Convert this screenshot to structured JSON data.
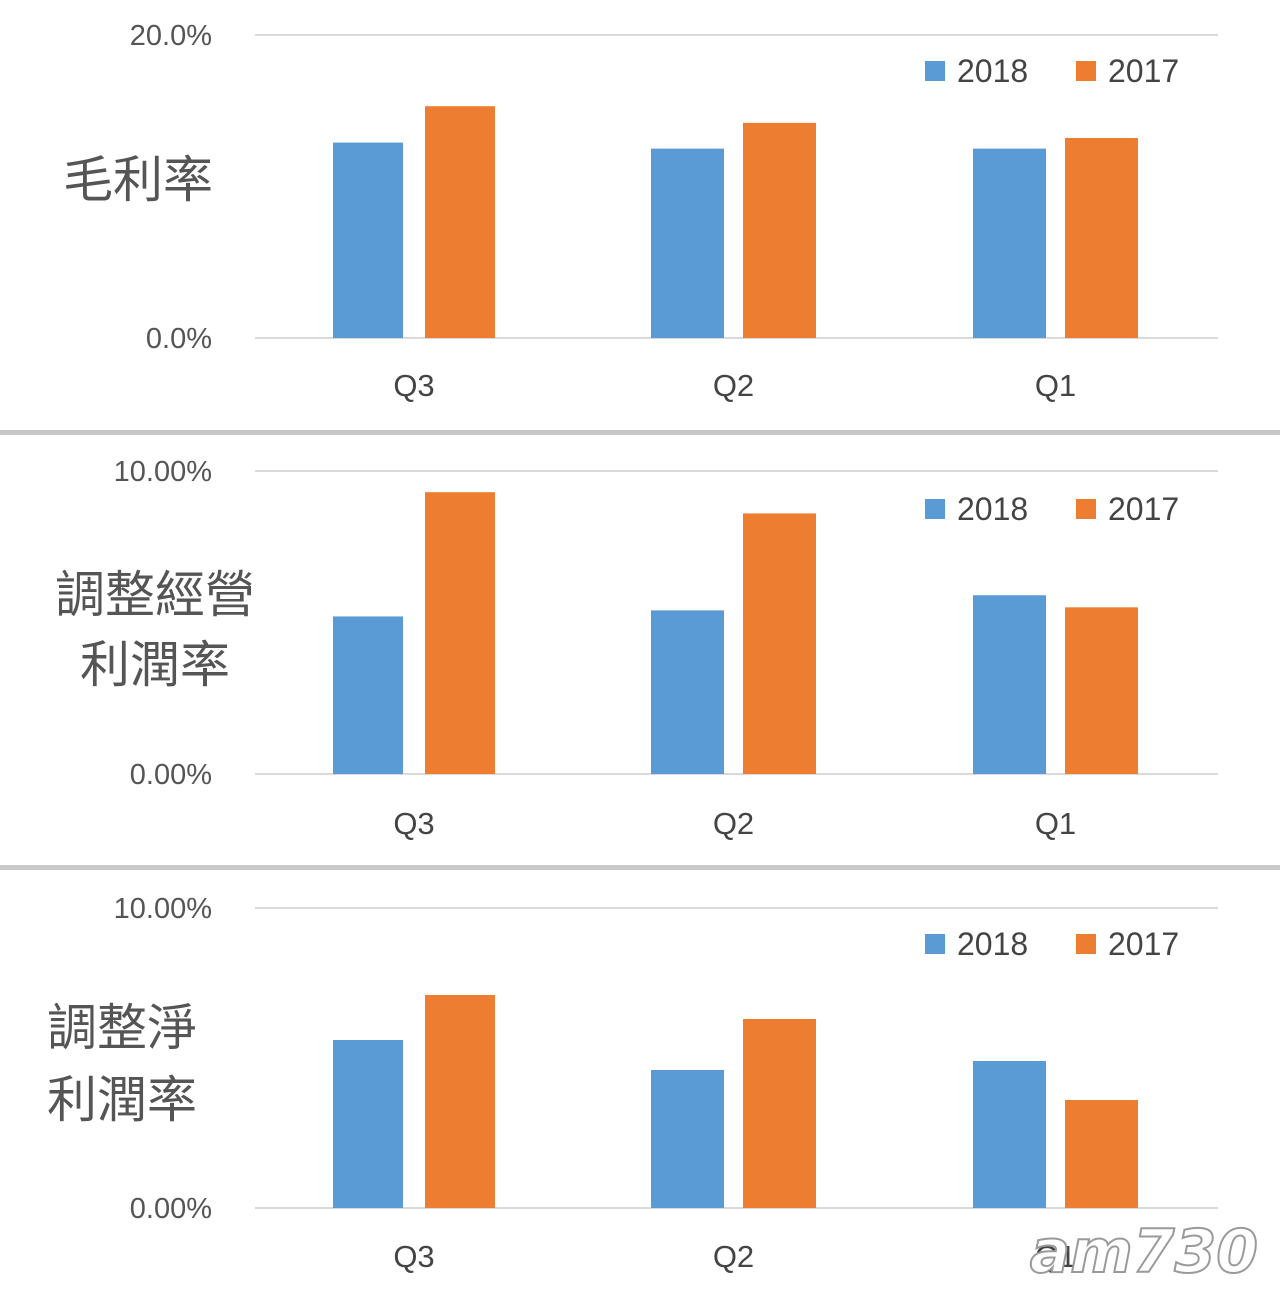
{
  "colors": {
    "series_2018": "#5b9bd5",
    "series_2017": "#ed7d31",
    "grid": "#d9d9d9",
    "divider": "#c8c8c8"
  },
  "watermark": "am730",
  "chart_data": [
    {
      "type": "bar",
      "label_lines": [
        "毛利率"
      ],
      "categories": [
        "Q3",
        "Q2",
        "Q1"
      ],
      "series": [
        {
          "name": "2018",
          "values": [
            12.9,
            12.5,
            12.5
          ]
        },
        {
          "name": "2017",
          "values": [
            15.3,
            14.2,
            13.2
          ]
        }
      ],
      "ylim": [
        0,
        20
      ],
      "ytick_labels": [
        "20.0%",
        "0.0%"
      ],
      "legend_position": "top-right",
      "grid": true
    },
    {
      "type": "bar",
      "label_lines": [
        "調整經營",
        "利潤率"
      ],
      "categories": [
        "Q3",
        "Q2",
        "Q1"
      ],
      "series": [
        {
          "name": "2018",
          "values": [
            5.2,
            5.4,
            5.9
          ]
        },
        {
          "name": "2017",
          "values": [
            9.3,
            8.6,
            5.5
          ]
        }
      ],
      "ylim": [
        0,
        10
      ],
      "ytick_labels": [
        "10.00%",
        "0.00%"
      ],
      "legend_position": "top-right",
      "grid": true
    },
    {
      "type": "bar",
      "label_lines": [
        "調整淨",
        "利潤率"
      ],
      "categories": [
        "Q3",
        "Q2",
        "Q1"
      ],
      "series": [
        {
          "name": "2018",
          "values": [
            5.6,
            4.6,
            4.9
          ]
        },
        {
          "name": "2017",
          "values": [
            7.1,
            6.3,
            3.6
          ]
        }
      ],
      "ylim": [
        0,
        10
      ],
      "ytick_labels": [
        "10.00%",
        "0.00%"
      ],
      "legend_position": "top-right",
      "grid": true
    }
  ]
}
